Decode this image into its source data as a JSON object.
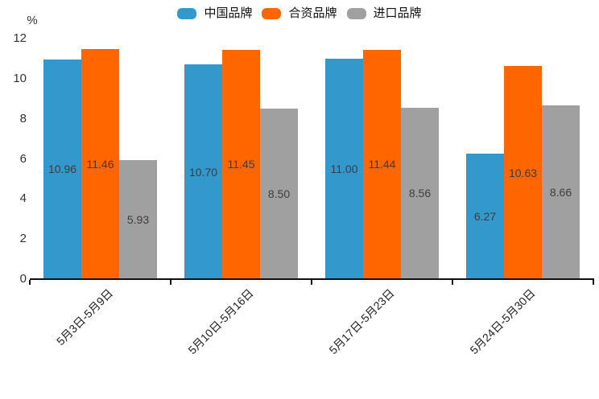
{
  "chart_data": {
    "type": "bar",
    "title": "",
    "unit_label": "%",
    "xlabel": "",
    "ylabel": "%",
    "categories": [
      "5月3日-5月9日",
      "5月10日-5月16日",
      "5月17日-5月23日",
      "5月24日-5月30日"
    ],
    "series": [
      {
        "name": "中国品牌",
        "color": "#3398CC",
        "values": [
          10.96,
          10.7,
          11.0,
          6.27
        ]
      },
      {
        "name": "合资品牌",
        "color": "#FF6600",
        "values": [
          11.46,
          11.45,
          11.44,
          10.63
        ]
      },
      {
        "name": "进口品牌",
        "color": "#A0A0A0",
        "values": [
          5.93,
          8.5,
          8.56,
          8.66
        ]
      }
    ],
    "value_labels": [
      [
        "10.96",
        "10.70",
        "11.00",
        "6.27"
      ],
      [
        "11.46",
        "11.45",
        "11.44",
        "10.63"
      ],
      [
        "5.93",
        "8.50",
        "8.56",
        "8.66"
      ]
    ],
    "ylim": [
      0,
      12
    ],
    "yticks": [
      0,
      2,
      4,
      6,
      8,
      10,
      12
    ],
    "legend_position": "top",
    "grid": "off",
    "colors": {
      "axis": "#111111",
      "tick_label": "#333333",
      "x_label": "#222222",
      "data_label": "#3d3d3d",
      "background": "#ffffff"
    }
  }
}
